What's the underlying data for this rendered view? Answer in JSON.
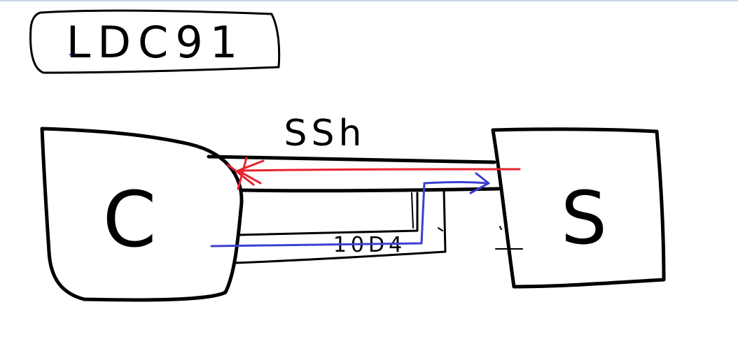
{
  "title_box": {
    "text": "LDC91"
  },
  "client": {
    "label": "C"
  },
  "server": {
    "label": "S"
  },
  "tunnel": {
    "label": "SSh"
  },
  "lower_link": {
    "label": "10D4"
  },
  "colors": {
    "ink": "#000000",
    "red_arrow": "#e8222e",
    "blue_arrow": "#3b3fd0",
    "background": "#ffffff"
  }
}
